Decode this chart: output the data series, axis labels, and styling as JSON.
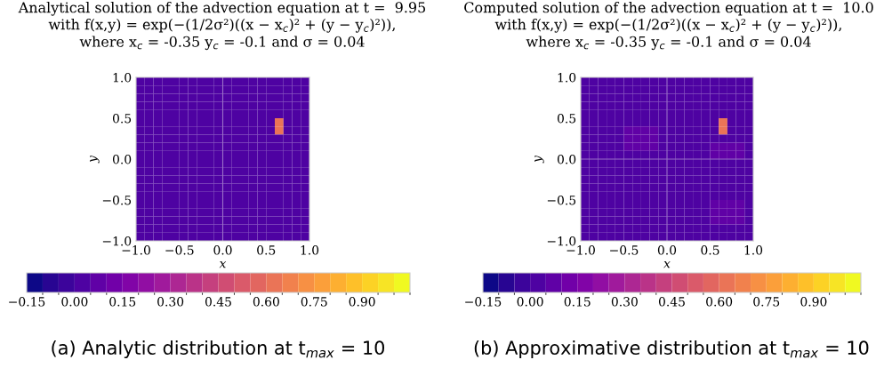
{
  "chart_data": [
    {
      "type": "heatmap",
      "title": "Analytical solution of the advection equation at t =  9.95",
      "subtitle": "with f(x,y) = exp(−(1/2σ²)((x − x$_{c}$)² + (y − y$_{c}$)²)),\nwhere x$_{c}$ = -0.35 y$_{c}$ = -0.1 and σ = 0.04",
      "xlabel": "x",
      "ylabel": "y",
      "annotations": [
        "(a) Analytic distribution at t$_{max}$ = 10"
      ],
      "xlim": [
        -1.0,
        1.0
      ],
      "ylim": [
        -1.0,
        1.0
      ],
      "xticks": [
        {
          "value": -1.0,
          "label": "−1.0"
        },
        {
          "value": -0.5,
          "label": "−0.5"
        },
        {
          "value": 0,
          "label": "0.0"
        },
        {
          "value": 0.5,
          "label": "0.5"
        },
        {
          "value": 1.0,
          "label": "1.0"
        }
      ],
      "yticks": [
        {
          "value": -1.0,
          "label": "−1.0"
        },
        {
          "value": -0.5,
          "label": "−0.5"
        },
        {
          "value": 0,
          "label": "0.0"
        },
        {
          "value": 0.5,
          "label": "0.5"
        },
        {
          "value": 1.0,
          "label": "1.0"
        }
      ],
      "clim": [
        -0.15,
        1.05
      ],
      "cticks": [
        {
          "value": -0.15,
          "label": "−0.15"
        },
        {
          "value": 0,
          "label": "0.00"
        },
        {
          "value": 0.15,
          "label": "0.15"
        },
        {
          "value": 0.3,
          "label": "0.30"
        },
        {
          "value": 0.45,
          "label": "0.45"
        },
        {
          "value": 0.6,
          "label": "0.60"
        },
        {
          "value": 0.75,
          "label": "0.75"
        },
        {
          "value": 0.9,
          "label": "0.90"
        }
      ],
      "ref_lines": [
        {
          "axis": "x",
          "value": 0,
          "color": "#9a70c8"
        }
      ],
      "cells": [
        [
          0,
          0,
          0,
          0,
          0,
          0,
          0,
          0,
          0,
          0,
          0,
          0,
          0,
          0,
          0,
          0,
          0,
          0,
          0,
          0
        ],
        [
          0,
          0,
          0,
          0,
          0,
          0,
          0,
          0,
          0,
          0,
          0,
          0,
          0,
          0,
          0,
          0,
          0,
          0,
          0,
          0
        ],
        [
          0,
          0,
          0,
          0,
          0,
          0,
          0,
          0,
          0,
          0,
          0,
          0,
          0,
          0,
          0,
          0,
          0,
          0,
          0,
          0
        ],
        [
          0,
          0,
          0,
          0,
          0,
          0,
          0,
          0,
          0,
          0,
          0,
          0,
          0,
          0,
          0,
          0,
          0,
          0,
          0,
          0
        ],
        [
          0,
          0,
          0,
          0,
          0,
          0,
          0,
          0,
          0,
          0,
          0,
          0,
          0,
          0,
          0,
          0,
          0,
          0,
          0,
          0
        ],
        [
          0,
          0,
          0,
          0,
          0,
          0,
          0,
          0,
          0,
          0,
          0,
          0,
          0,
          0,
          0,
          0,
          0.6,
          0,
          0,
          0
        ],
        [
          0,
          0,
          0,
          0,
          0,
          0,
          0,
          0,
          0,
          0,
          0,
          0,
          0,
          0,
          0,
          0,
          0.6,
          0,
          0,
          0
        ],
        [
          0,
          0,
          0,
          0,
          0,
          0,
          0,
          0,
          0,
          0,
          0,
          0,
          0,
          0,
          0,
          0,
          0,
          0,
          0,
          0
        ],
        [
          0,
          0,
          0,
          0,
          0,
          0,
          0,
          0,
          0,
          0,
          0,
          0,
          0,
          0,
          0,
          0,
          0,
          0,
          0,
          0
        ],
        [
          0,
          0,
          0,
          0,
          0,
          0,
          0,
          0,
          0,
          0,
          0,
          0,
          0,
          0,
          0,
          0,
          0,
          0,
          0,
          0
        ],
        [
          0,
          0,
          0,
          0,
          0,
          0,
          0,
          0,
          0,
          0,
          0,
          0,
          0,
          0,
          0,
          0,
          0,
          0,
          0,
          0
        ],
        [
          0,
          0,
          0,
          0,
          0,
          0,
          0,
          0,
          0,
          0,
          0,
          0,
          0,
          0,
          0,
          0,
          0,
          0,
          0,
          0
        ],
        [
          0,
          0,
          0,
          0,
          0,
          0,
          0,
          0,
          0,
          0,
          0,
          0,
          0,
          0,
          0,
          0,
          0,
          0,
          0,
          0
        ],
        [
          0,
          0,
          0,
          0,
          0,
          0,
          0,
          0,
          0,
          0,
          0,
          0,
          0,
          0,
          0,
          0,
          0,
          0,
          0,
          0
        ],
        [
          0,
          0,
          0,
          0,
          0,
          0,
          0,
          0,
          0,
          0,
          0,
          0,
          0,
          0,
          0,
          0,
          0,
          0,
          0,
          0
        ],
        [
          0,
          0,
          0,
          0,
          0,
          0,
          0,
          0,
          0,
          0,
          0,
          0,
          0,
          0,
          0,
          0,
          0,
          0,
          0,
          0
        ],
        [
          0,
          0,
          0,
          0,
          0,
          0,
          0,
          0,
          0,
          0,
          0,
          0,
          0,
          0,
          0,
          0,
          0,
          0,
          0,
          0
        ],
        [
          0,
          0,
          0,
          0,
          0,
          0,
          0,
          0,
          0,
          0,
          0,
          0,
          0,
          0,
          0,
          0,
          0,
          0,
          0,
          0
        ],
        [
          0,
          0,
          0,
          0,
          0,
          0,
          0,
          0,
          0,
          0,
          0,
          0,
          0,
          0,
          0,
          0,
          0,
          0,
          0,
          0
        ],
        [
          0,
          0,
          0,
          0,
          0,
          0,
          0,
          0,
          0,
          0,
          0,
          0,
          0,
          0,
          0,
          0,
          0,
          0,
          0,
          0
        ]
      ]
    },
    {
      "type": "heatmap",
      "title": "Computed solution of the advection equation at t =  10.0",
      "subtitle": "with f(x,y) = exp(−(1/2σ²)((x − x$_{c}$)² + (y − y$_{c}$)²)),\nwhere x$_{c}$ = -0.35 y$_{c}$ = -0.1 and σ = 0.04",
      "xlabel": "x",
      "ylabel": "y",
      "annotations": [
        "(b) Approximative distribution at t$_{max}$ = 10"
      ],
      "xlim": [
        -1.0,
        1.0
      ],
      "ylim": [
        -1.0,
        1.0
      ],
      "xticks": [
        {
          "value": -1.0,
          "label": "−1.0"
        },
        {
          "value": -0.5,
          "label": "−0.5"
        },
        {
          "value": 0,
          "label": "0.0"
        },
        {
          "value": 0.5,
          "label": "0.5"
        },
        {
          "value": 1.0,
          "label": "1.0"
        }
      ],
      "yticks": [
        {
          "value": -1.0,
          "label": "−1.0"
        },
        {
          "value": -0.5,
          "label": "−0.5"
        },
        {
          "value": 0,
          "label": "0.0"
        },
        {
          "value": 0.5,
          "label": "0.5"
        },
        {
          "value": 1.0,
          "label": "1.0"
        }
      ],
      "clim": [
        -0.15,
        1.05
      ],
      "cticks": [
        {
          "value": -0.15,
          "label": "−0.15"
        },
        {
          "value": 0,
          "label": "0.00"
        },
        {
          "value": 0.15,
          "label": "0.15"
        },
        {
          "value": 0.3,
          "label": "0.30"
        },
        {
          "value": 0.45,
          "label": "0.45"
        },
        {
          "value": 0.6,
          "label": "0.60"
        },
        {
          "value": 0.75,
          "label": "0.75"
        },
        {
          "value": 0.9,
          "label": "0.90"
        }
      ],
      "ref_lines": [
        {
          "axis": "x",
          "value": 0,
          "color": "#9a70c8"
        },
        {
          "axis": "y",
          "value": 0,
          "color": "#9a70c8"
        }
      ],
      "cells": [
        [
          0,
          0,
          0,
          0,
          0,
          0,
          0,
          0,
          0,
          0,
          0,
          0,
          0,
          0,
          0,
          0,
          0,
          0,
          0,
          0
        ],
        [
          0,
          0,
          0,
          0,
          0,
          0,
          0,
          0,
          0,
          0,
          0,
          0,
          0,
          0,
          0,
          0,
          0,
          0,
          0,
          0
        ],
        [
          0,
          0,
          0,
          0,
          0,
          0,
          0,
          0,
          0,
          0,
          0,
          0,
          0,
          0,
          0,
          0,
          0,
          0,
          0,
          0
        ],
        [
          0,
          0,
          0,
          0,
          0,
          0,
          0,
          0,
          0,
          0,
          0,
          0,
          0,
          0,
          0,
          0,
          0,
          0,
          0,
          0
        ],
        [
          0,
          0,
          0,
          0,
          0,
          0,
          0,
          0,
          0,
          0,
          0,
          0,
          0,
          0,
          0,
          0,
          0,
          0,
          0,
          0
        ],
        [
          0,
          0,
          0,
          0,
          0,
          0,
          0,
          0,
          0,
          0,
          0,
          0,
          0,
          0,
          0,
          0,
          0.6,
          0,
          0,
          0
        ],
        [
          0,
          0,
          0,
          0,
          0,
          0.05,
          0.05,
          0.05,
          0.05,
          0,
          0,
          0,
          0,
          0,
          0,
          0,
          0.6,
          0,
          0,
          0
        ],
        [
          0,
          0,
          0,
          0,
          0,
          0.05,
          0.05,
          0.05,
          0.05,
          0,
          0,
          0,
          0,
          0,
          0,
          0,
          0,
          0,
          0,
          0
        ],
        [
          0,
          0,
          0,
          0,
          0,
          0.05,
          0.05,
          0.05,
          0.05,
          0,
          0,
          0,
          0,
          0,
          0,
          0.05,
          0.05,
          0.05,
          0.05,
          0
        ],
        [
          0,
          0,
          0,
          0,
          0,
          0,
          0,
          0,
          0,
          0,
          0,
          0,
          0,
          0,
          0,
          0.05,
          0.05,
          0.05,
          0.05,
          0
        ],
        [
          0,
          0,
          0,
          0,
          0,
          0,
          0,
          0,
          0,
          0,
          0,
          0,
          0,
          0,
          0,
          0,
          0,
          0,
          0,
          0
        ],
        [
          0,
          0,
          0,
          0,
          0,
          0,
          0,
          0,
          0,
          0,
          0,
          0,
          0,
          0,
          0,
          0,
          0,
          0,
          0,
          0
        ],
        [
          0,
          0,
          0,
          0,
          0,
          0,
          0,
          0,
          0,
          0,
          0,
          0,
          0,
          0,
          0,
          0,
          0,
          0,
          0,
          0
        ],
        [
          0,
          0,
          0,
          0,
          0,
          0,
          0,
          0,
          0,
          0,
          0,
          0,
          0,
          0,
          0,
          0,
          0,
          0,
          0,
          0
        ],
        [
          0,
          0,
          0,
          0,
          0,
          0,
          0,
          0,
          0,
          0,
          0,
          0,
          0,
          0,
          0,
          0,
          0,
          0,
          0,
          0
        ],
        [
          0,
          0,
          0,
          0,
          0,
          0,
          0,
          0,
          0,
          0,
          0,
          0,
          0,
          0,
          0,
          0.05,
          0.05,
          0.05,
          0.05,
          0
        ],
        [
          0,
          0,
          0,
          0,
          0,
          0,
          0,
          0,
          0,
          0,
          0,
          0,
          0,
          0,
          0,
          0.05,
          0.05,
          0.05,
          0.05,
          0
        ],
        [
          0,
          0,
          0,
          0,
          0,
          0,
          0,
          0,
          0,
          0,
          0,
          0,
          0,
          0,
          0,
          0.05,
          0.05,
          0.05,
          0.05,
          0
        ],
        [
          0,
          0,
          0,
          0,
          0,
          0,
          0,
          0,
          0,
          0,
          0,
          0,
          0,
          0,
          0,
          0,
          0,
          0,
          0,
          0
        ],
        [
          0,
          0,
          0,
          0,
          0,
          0,
          0,
          0,
          0,
          0,
          0,
          0,
          0,
          0,
          0,
          0,
          0,
          0,
          0,
          0
        ]
      ]
    }
  ]
}
